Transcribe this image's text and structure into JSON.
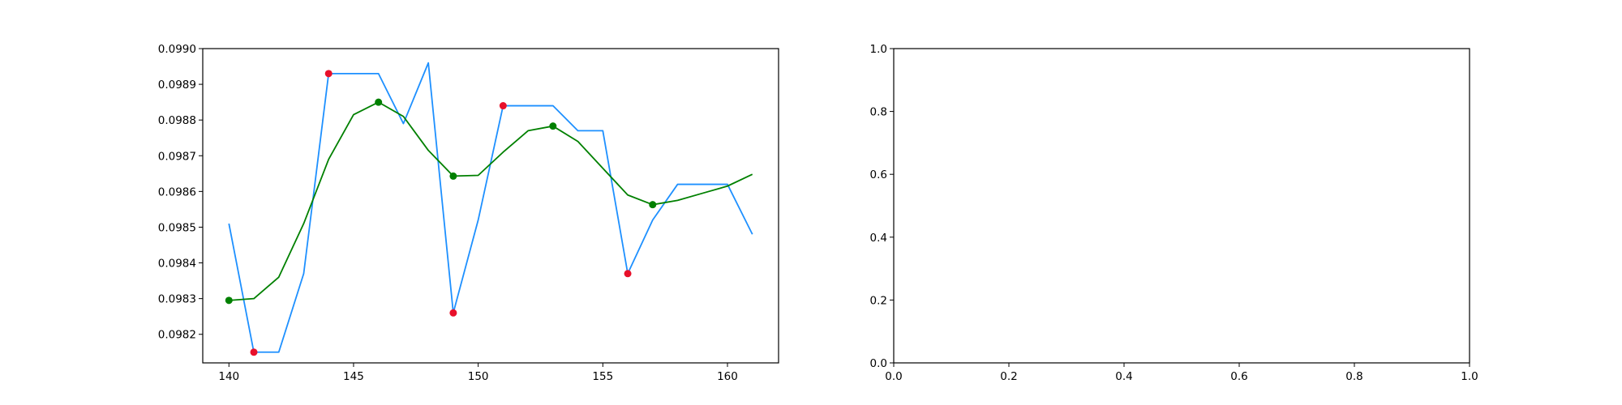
{
  "chart_data": [
    {
      "type": "line",
      "title": "",
      "xlabel": "",
      "ylabel": "",
      "xlim": [
        138.95,
        162.05
      ],
      "ylim": [
        0.09812,
        0.099
      ],
      "xticks": [
        140,
        145,
        150,
        155,
        160
      ],
      "xtick_labels": [
        "140",
        "145",
        "150",
        "155",
        "160"
      ],
      "yticks": [
        0.0982,
        0.0983,
        0.0984,
        0.0985,
        0.0986,
        0.0987,
        0.0988,
        0.0989,
        0.099
      ],
      "ytick_labels": [
        "0.0982",
        "0.0983",
        "0.0984",
        "0.0985",
        "0.0986",
        "0.0987",
        "0.0988",
        "0.0989",
        "0.0990"
      ],
      "grid": false,
      "series": [
        {
          "color": "#1e90ff",
          "x": [
            140,
            141,
            142,
            143,
            144,
            145,
            146,
            147,
            148,
            149,
            150,
            151,
            152,
            153,
            154,
            155,
            156,
            157,
            158,
            159,
            160,
            161
          ],
          "y": [
            0.09851,
            0.09815,
            0.09815,
            0.09837,
            0.09893,
            0.09893,
            0.09893,
            0.09879,
            0.09896,
            0.09826,
            0.09852,
            0.09884,
            0.09884,
            0.09884,
            0.09877,
            0.09877,
            0.09837,
            0.09852,
            0.09862,
            0.09862,
            0.09862,
            0.09848
          ]
        },
        {
          "color": "#008000",
          "x": [
            140,
            141,
            142,
            143,
            144,
            145,
            146,
            147,
            148,
            149,
            150,
            151,
            152,
            153,
            154,
            155,
            156,
            157,
            158,
            159,
            160,
            161
          ],
          "y": [
            0.098295,
            0.0983,
            0.09836,
            0.09851,
            0.09869,
            0.098815,
            0.09885,
            0.09881,
            0.098715,
            0.098643,
            0.098645,
            0.09871,
            0.09877,
            0.098783,
            0.09874,
            0.098665,
            0.09859,
            0.098563,
            0.098575,
            0.098595,
            0.098615,
            0.098648
          ]
        }
      ],
      "markers": [
        {
          "color": "#e8102a",
          "x": [
            141,
            144,
            149,
            151,
            156
          ],
          "y": [
            0.09815,
            0.09893,
            0.09826,
            0.09884,
            0.09837
          ]
        },
        {
          "color": "#008000",
          "x": [
            140,
            146,
            149,
            153,
            157
          ],
          "y": [
            0.098295,
            0.09885,
            0.098643,
            0.098783,
            0.098563
          ]
        }
      ]
    },
    {
      "type": "line",
      "title": "",
      "xlabel": "",
      "ylabel": "",
      "xlim": [
        0.0,
        1.0
      ],
      "ylim": [
        0.0,
        1.0
      ],
      "xticks": [
        0.0,
        0.2,
        0.4,
        0.6,
        0.8,
        1.0
      ],
      "xtick_labels": [
        "0.0",
        "0.2",
        "0.4",
        "0.6",
        "0.8",
        "1.0"
      ],
      "yticks": [
        0.0,
        0.2,
        0.4,
        0.6,
        0.8,
        1.0
      ],
      "ytick_labels": [
        "0.0",
        "0.2",
        "0.4",
        "0.6",
        "0.8",
        "1.0"
      ],
      "grid": false,
      "series": [],
      "markers": []
    }
  ]
}
